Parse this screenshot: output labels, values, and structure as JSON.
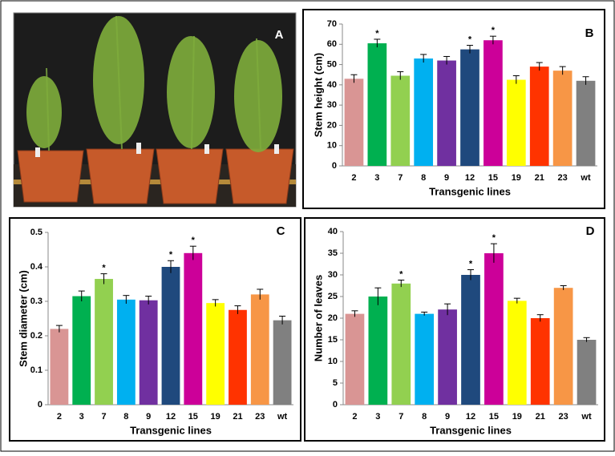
{
  "photo_label": "A",
  "chart_data": [
    {
      "type": "bar",
      "label": "B",
      "y_label": "Stem height  (cm)",
      "x_label": "Transgenic lines",
      "categories": [
        "2",
        "3",
        "7",
        "8",
        "9",
        "12",
        "15",
        "19",
        "21",
        "23",
        "wt"
      ],
      "values": [
        43,
        60.5,
        44.5,
        53,
        52,
        57.5,
        62,
        42.5,
        49,
        47,
        42
      ],
      "errors": [
        2,
        2,
        2,
        2,
        2,
        2,
        2,
        2,
        2,
        2,
        2
      ],
      "colors": [
        "#d99594",
        "#00b050",
        "#92d050",
        "#00b0f0",
        "#7030a0",
        "#1f497d",
        "#cc0099",
        "#ffff00",
        "#ff3300",
        "#f79646",
        "#808080"
      ],
      "annotations": [
        {
          "category": "3",
          "text": "*"
        },
        {
          "category": "12",
          "text": "*"
        },
        {
          "category": "15",
          "text": "*"
        }
      ],
      "ylim": [
        0,
        70
      ],
      "yticks": [
        0,
        10,
        20,
        30,
        40,
        50,
        60,
        70
      ]
    },
    {
      "type": "bar",
      "label": "C",
      "y_label": "Stem diameter (cm)",
      "x_label": "Transgenic lines",
      "categories": [
        "2",
        "3",
        "7",
        "8",
        "9",
        "12",
        "15",
        "19",
        "21",
        "23",
        "wt"
      ],
      "values": [
        0.22,
        0.315,
        0.365,
        0.305,
        0.303,
        0.4,
        0.44,
        0.295,
        0.275,
        0.32,
        0.245
      ],
      "errors": [
        0.01,
        0.015,
        0.015,
        0.012,
        0.012,
        0.018,
        0.02,
        0.01,
        0.012,
        0.015,
        0.012
      ],
      "colors": [
        "#d99594",
        "#00b050",
        "#92d050",
        "#00b0f0",
        "#7030a0",
        "#1f497d",
        "#cc0099",
        "#ffff00",
        "#ff3300",
        "#f79646",
        "#808080"
      ],
      "annotations": [
        {
          "category": "7",
          "text": "*"
        },
        {
          "category": "12",
          "text": "*"
        },
        {
          "category": "15",
          "text": "*"
        }
      ],
      "ylim": [
        0,
        0.5
      ],
      "yticks": [
        0,
        0.1,
        0.2,
        0.3,
        0.4,
        0.5
      ]
    },
    {
      "type": "bar",
      "label": "D",
      "y_label": "Number of leaves",
      "x_label": "Transgenic lines",
      "categories": [
        "2",
        "3",
        "7",
        "8",
        "9",
        "12",
        "15",
        "19",
        "21",
        "23",
        "wt"
      ],
      "values": [
        21,
        25,
        28,
        21,
        22,
        30,
        35,
        24,
        20,
        27,
        15
      ],
      "errors": [
        0.7,
        2,
        0.8,
        0.4,
        1.3,
        1.2,
        2.2,
        0.6,
        0.8,
        0.5,
        0.5
      ],
      "colors": [
        "#d99594",
        "#00b050",
        "#92d050",
        "#00b0f0",
        "#7030a0",
        "#1f497d",
        "#cc0099",
        "#ffff00",
        "#ff3300",
        "#f79646",
        "#808080"
      ],
      "annotations": [
        {
          "category": "7",
          "text": "*"
        },
        {
          "category": "12",
          "text": "*"
        },
        {
          "category": "15",
          "text": "*"
        }
      ],
      "ylim": [
        0,
        40
      ],
      "yticks": [
        0,
        5,
        10,
        15,
        20,
        25,
        30,
        35,
        40
      ]
    }
  ]
}
